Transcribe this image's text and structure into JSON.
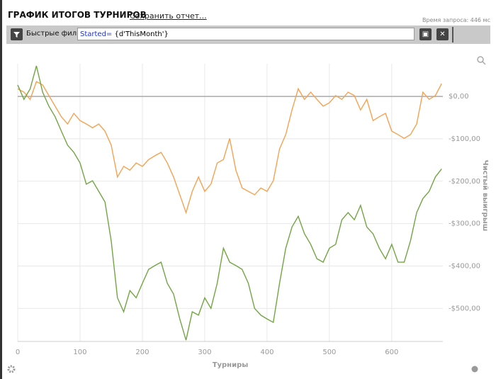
{
  "header": {
    "title": "ГРАФИК ИТОГОВ ТУРНИРОВ",
    "save_link": "Сохранить отчет...",
    "query_time": "Время запроса: 446 мс"
  },
  "filter": {
    "label": "Быстрые фильт",
    "keyword": "Started=",
    "value": " {d'ThisMonth'}"
  },
  "chart_data": {
    "type": "line",
    "xlabel": "Турниры",
    "ylabel": "Чистый выигрыш",
    "x": [
      0,
      10,
      20,
      30,
      40,
      50,
      60,
      70,
      80,
      90,
      100,
      110,
      120,
      130,
      140,
      150,
      160,
      170,
      180,
      190,
      200,
      210,
      220,
      230,
      240,
      250,
      260,
      270,
      280,
      290,
      300,
      310,
      320,
      330,
      340,
      350,
      360,
      370,
      380,
      390,
      400,
      410,
      420,
      430,
      440,
      450,
      460,
      470,
      480,
      490,
      500,
      510,
      520,
      530,
      540,
      550,
      560,
      570,
      580,
      590,
      600,
      610,
      620,
      630,
      640,
      650,
      660,
      670,
      680
    ],
    "series": [
      {
        "color": "#f5a251",
        "values": [
          18,
          10,
          -7,
          35,
          27,
          2,
          -23,
          -48,
          -65,
          -40,
          -57,
          -65,
          -74,
          -65,
          -82,
          -115,
          -190,
          -165,
          -174,
          -157,
          -165,
          -149,
          -140,
          -132,
          -157,
          -190,
          -232,
          -274,
          -224,
          -190,
          -224,
          -207,
          -157,
          -149,
          -99,
          -174,
          -216,
          -224,
          -232,
          -216,
          -224,
          -199,
          -124,
          -90,
          -32,
          18,
          -7,
          10,
          -7,
          -23,
          -15,
          2,
          -7,
          10,
          2,
          -32,
          -7,
          -57,
          -48,
          -40,
          -82,
          -90,
          -99,
          -90,
          -65,
          10,
          -7,
          2,
          30
        ]
      },
      {
        "color": "#72a543",
        "values": [
          27,
          -7,
          18,
          72,
          10,
          -23,
          -48,
          -82,
          -115,
          -132,
          -157,
          -207,
          -199,
          -224,
          -249,
          -341,
          -475,
          -508,
          -458,
          -475,
          -441,
          -408,
          -399,
          -391,
          -441,
          -466,
          -525,
          -575,
          -508,
          -516,
          -475,
          -500,
          -441,
          -358,
          -391,
          -399,
          -408,
          -441,
          -500,
          -516,
          -525,
          -533,
          -441,
          -358,
          -308,
          -283,
          -324,
          -349,
          -383,
          -391,
          -358,
          -349,
          -291,
          -274,
          -291,
          -257,
          -308,
          -324,
          -358,
          -383,
          -349,
          -391,
          -391,
          -341,
          -274,
          -241,
          -224,
          -190,
          -171
        ]
      }
    ],
    "xlim": [
      0,
      682
    ],
    "xticks": [
      0,
      100,
      200,
      300,
      400,
      500,
      600
    ],
    "ylim": [
      -578,
      77
    ],
    "yticks": [
      {
        "value": -500,
        "label": "-$500,00"
      },
      {
        "value": -400,
        "label": "-$400,00"
      },
      {
        "value": -300,
        "label": "-$300,00"
      },
      {
        "value": -200,
        "label": "-$200,00"
      },
      {
        "value": -100,
        "label": "-$100,00"
      },
      {
        "value": 0,
        "label": "$0,00"
      }
    ],
    "grid": true
  }
}
